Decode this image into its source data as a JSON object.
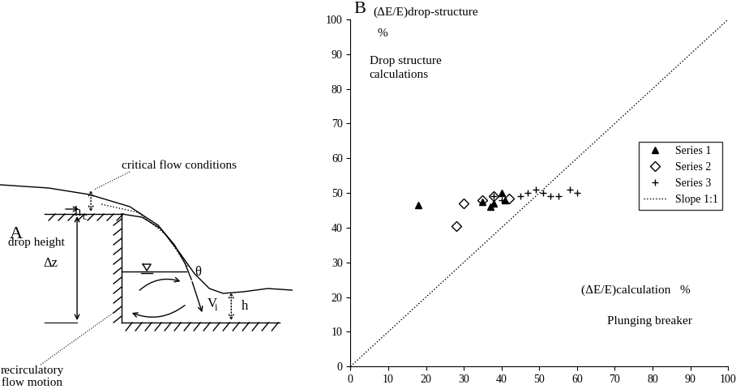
{
  "diagram": {
    "panel_label": "A",
    "critical_flow": "critical flow conditions",
    "critical_depth": {
      "symbol": "h",
      "subscript": "c"
    },
    "drop_height": "drop height",
    "drop_symbol": "Δz",
    "recirculation": [
      "recirculatory",
      "flow motion"
    ],
    "angle": "θ",
    "impact_velocity": {
      "symbol": "V",
      "subscript": "i"
    },
    "tailwater_depth": "h"
  },
  "chart_data": {
    "type": "scatter",
    "panel_label": "B",
    "ylabel": "(ΔE/E)drop-structure",
    "ylabel_unit": "%",
    "ylabel_note": [
      "Drop structure",
      "calculations"
    ],
    "xlabel": "(ΔE/E)calculation   %",
    "xlabel_note": "Plunging breaker",
    "xlim": [
      0,
      100
    ],
    "ylim": [
      0,
      100
    ],
    "xticks": [
      0,
      10,
      20,
      30,
      40,
      50,
      60,
      70,
      80,
      90,
      100
    ],
    "yticks": [
      0,
      10,
      20,
      30,
      40,
      50,
      60,
      70,
      80,
      90,
      100
    ],
    "grid": false,
    "legend": "center right",
    "series": [
      {
        "name": "Series 1",
        "color": "#000000",
        "marker": "triangle",
        "x": [
          18,
          35,
          37,
          38,
          40,
          41
        ],
        "values": [
          46.5,
          47.5,
          46,
          47,
          50,
          48
        ]
      },
      {
        "name": "Series 2",
        "color": "#000000",
        "marker": "open_diamond",
        "x": [
          28,
          30,
          35,
          38,
          42
        ],
        "values": [
          40.5,
          47,
          48,
          49,
          48.5
        ]
      },
      {
        "name": "Series 3",
        "color": "#000000",
        "marker": "plus",
        "x": [
          38,
          40,
          45,
          47,
          49,
          51,
          53,
          55,
          58,
          60
        ],
        "values": [
          49,
          48,
          49,
          50,
          51,
          50,
          49,
          49,
          51,
          50
        ]
      },
      {
        "name": "Slope 1:1",
        "color": "#000000",
        "type": "line",
        "line_style": "dotted",
        "x": [
          0,
          100
        ],
        "values": [
          0,
          100
        ]
      }
    ]
  }
}
